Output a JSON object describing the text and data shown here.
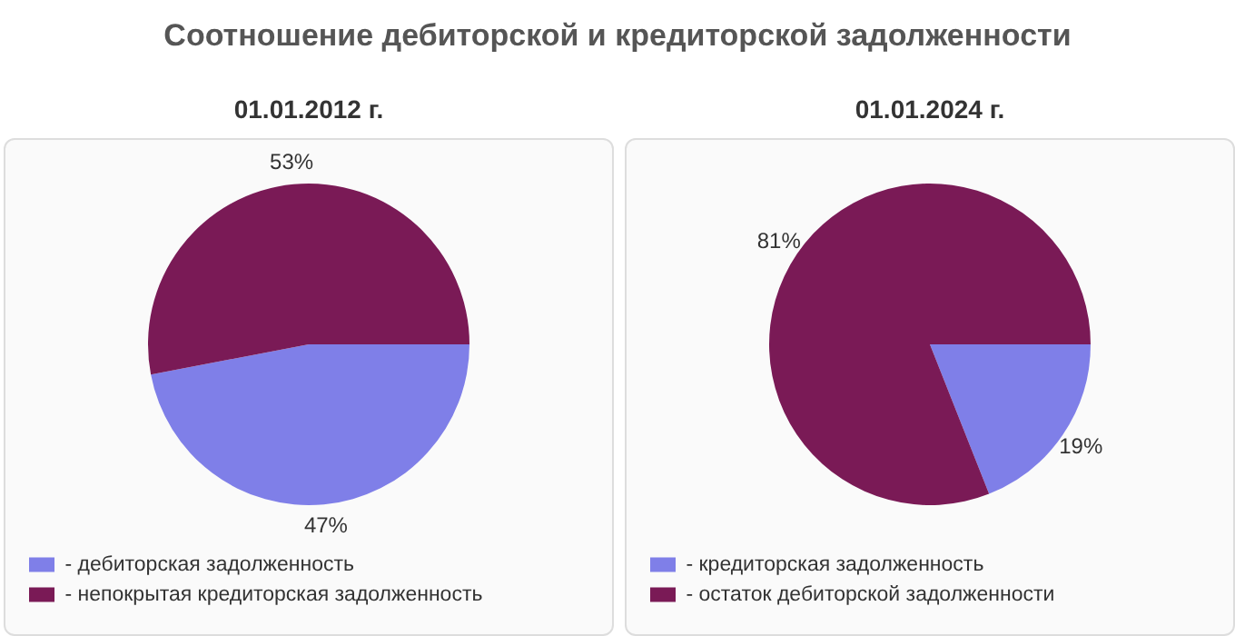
{
  "chart_data": [
    {
      "type": "pie",
      "title": "Соотношение дебиторской и кредиторской задолженности",
      "subtitle": "01.01.2012 г.",
      "categories": [
        "- дебиторская задолженность",
        "- непокрытая кредиторская задолженность"
      ],
      "values": [
        47,
        53
      ],
      "colors": [
        "#7f7fe8",
        "#7a1a56"
      ],
      "value_labels": [
        "47%",
        "53%"
      ],
      "legend": "bottom"
    },
    {
      "type": "pie",
      "subtitle": "01.01.2024 г.",
      "categories": [
        "- кредиторская задолженность",
        "- остаток дебиторской задолженности"
      ],
      "values": [
        19,
        81
      ],
      "colors": [
        "#7f7fe8",
        "#7a1a56"
      ],
      "value_labels": [
        "19%",
        "81%"
      ],
      "legend": "bottom"
    }
  ]
}
